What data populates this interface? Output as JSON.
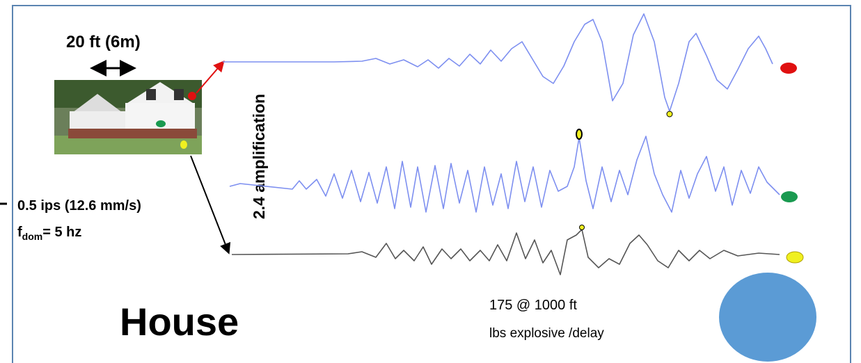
{
  "labels": {
    "distance": "20 ft (6m)",
    "velocity": "0.5 ips (12.6 mm/s)",
    "fdom": {
      "base": "f",
      "sub": "dom",
      "rest": "= 5 hz"
    },
    "amplification": "2.4 amplification",
    "title": "House",
    "charge": "175 @ 1000 ft",
    "charge_unit": "lbs explosive /delay"
  }
}
